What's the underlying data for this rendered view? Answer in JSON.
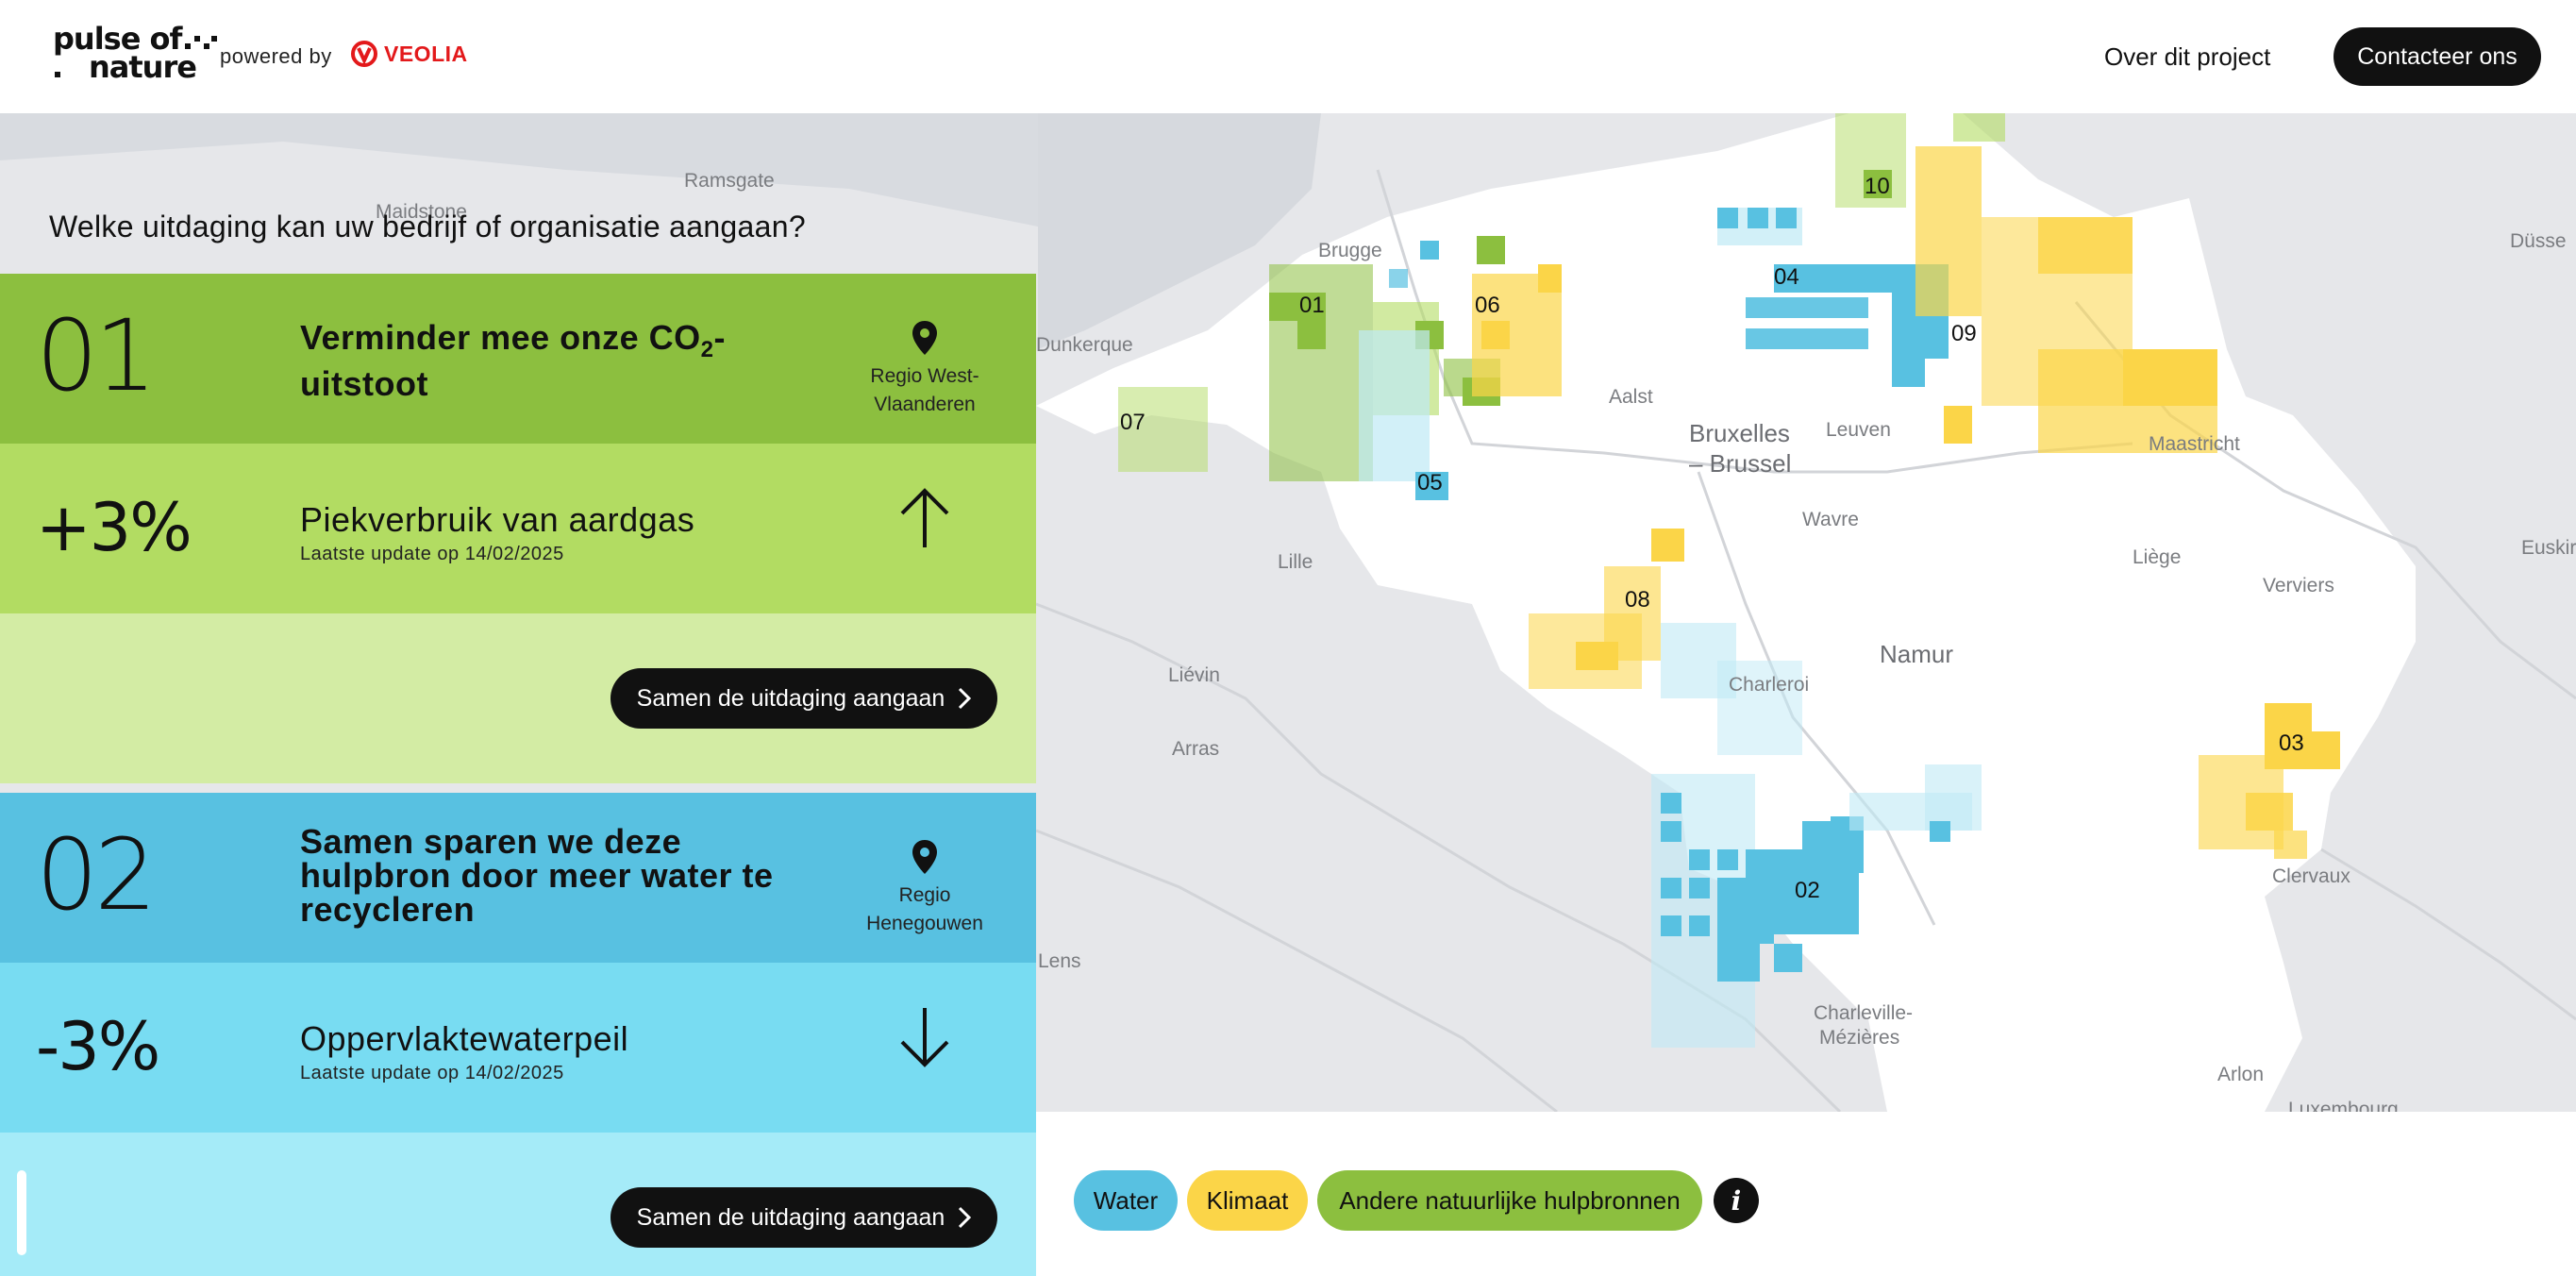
{
  "header": {
    "logo_line1": "pulse of",
    "logo_line2": "nature",
    "powered_by": "powered by",
    "partner": "VEOLIA",
    "nav_about": "Over dit project",
    "contact_label": "Contacteer ons"
  },
  "question": "Welke uitdaging kan uw bedrijf of organisatie aangaan?",
  "challenges": [
    {
      "number": "01",
      "title": "Verminder mee onze CO",
      "title_sub": "2",
      "title_rest": "-uitstoot",
      "region": "Regio West-Vlaanderen",
      "metric_value": "+3%",
      "metric_name": "Piekverbruik van aardgas",
      "metric_updated": "Laatste update op 14/02/2025",
      "trend": "up",
      "cta": "Samen de uitdaging aangaan",
      "colors": {
        "top": "#8cbf3f",
        "mid": "#b2dc62",
        "bottom": "#d3eca4"
      }
    },
    {
      "number": "02",
      "title": "Samen sparen we deze hulpbron door meer water te recycleren",
      "region": "Regio Henegouwen",
      "metric_value": "-3%",
      "metric_name": "Oppervlaktewaterpeil",
      "metric_updated": "Laatste update op 14/02/2025",
      "trend": "down",
      "cta": "Samen de uitdaging aangaan",
      "colors": {
        "top": "#58c1e1",
        "mid": "#78dcf2",
        "bottom": "#a5ebf8"
      }
    }
  ],
  "map": {
    "places": [
      "Ramsgate",
      "Maidstone",
      "Brugge",
      "Dunkerque",
      "Aalst",
      "Bruxelles",
      "– Brussel",
      "Leuven",
      "Maastricht",
      "Düsse",
      "Lille",
      "Wavre",
      "Liège",
      "Verviers",
      "Euskirc",
      "Liévin",
      "Namur",
      "Charleroi",
      "Arras",
      "Lens",
      "Clervaux",
      "Charleville-",
      "Mézières",
      "Arlon",
      "Luxembourg"
    ],
    "regions": [
      "01",
      "02",
      "03",
      "04",
      "05",
      "06",
      "07",
      "08",
      "09",
      "10"
    ]
  },
  "legend": {
    "water": "Water",
    "klimaat": "Klimaat",
    "andere": "Andere natuurlijke hulpbronnen",
    "info_icon": "info-icon",
    "colors": {
      "water": "#58c1e1",
      "klimaat": "#fbd548",
      "andere": "#8cbf3f"
    }
  }
}
